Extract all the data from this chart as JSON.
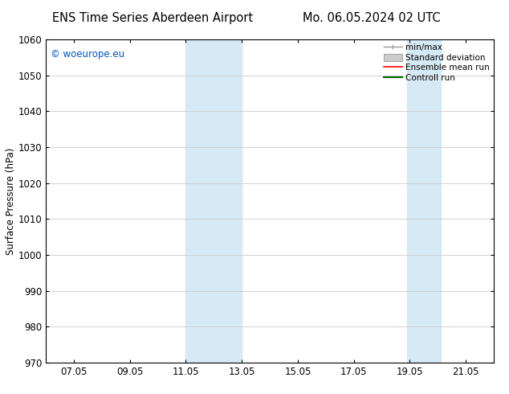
{
  "title_left": "ENS Time Series Aberdeen Airport",
  "title_right": "Mo. 06.05.2024 02 UTC",
  "ylabel": "Surface Pressure (hPa)",
  "xlabel_ticks": [
    "07.05",
    "09.05",
    "11.05",
    "13.05",
    "15.05",
    "17.05",
    "19.05",
    "21.05"
  ],
  "xtick_positions": [
    7,
    9,
    11,
    13,
    15,
    17,
    19,
    21
  ],
  "xlim": [
    6.0,
    22.0
  ],
  "ylim": [
    970,
    1060
  ],
  "yticks": [
    970,
    980,
    990,
    1000,
    1010,
    1020,
    1030,
    1040,
    1050,
    1060
  ],
  "shaded_regions": [
    {
      "xmin": 11.0,
      "xmax": 13.0,
      "color": "#d6eaf5"
    },
    {
      "xmin": 18.9,
      "xmax": 20.1,
      "color": "#d6eaf5"
    }
  ],
  "watermark_text": "© woeurope.eu",
  "watermark_color": "#0055cc",
  "background_color": "#ffffff",
  "plot_bg_color": "#ffffff",
  "legend_items": [
    {
      "label": "min/max",
      "type": "minmax",
      "color": "#999999"
    },
    {
      "label": "Standard deviation",
      "type": "patch",
      "facecolor": "#cccccc",
      "edgecolor": "#999999"
    },
    {
      "label": "Ensemble mean run",
      "type": "line",
      "color": "#ff0000",
      "lw": 1.2
    },
    {
      "label": "Controll run",
      "type": "line",
      "color": "#006600",
      "lw": 1.5
    }
  ],
  "grid_color": "#cccccc",
  "spine_color": "#000000",
  "tick_label_fontsize": 8.5,
  "title_fontsize": 10.5,
  "ylabel_fontsize": 8.5,
  "watermark_fontsize": 8.5,
  "legend_fontsize": 7.5
}
